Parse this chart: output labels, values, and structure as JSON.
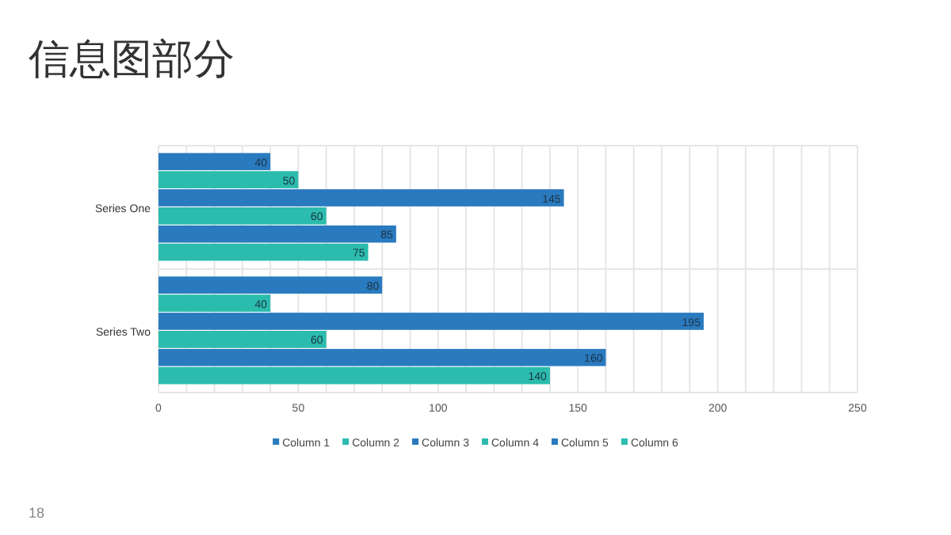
{
  "chart_data": {
    "type": "bar",
    "orientation": "horizontal",
    "title": "信息图部分",
    "categories": [
      "Series One",
      "Series Two"
    ],
    "series": [
      {
        "name": "Column 1",
        "color": "#2a7abf",
        "values": [
          40,
          80
        ]
      },
      {
        "name": "Column 2",
        "color": "#2bbcad",
        "values": [
          50,
          40
        ]
      },
      {
        "name": "Column 3",
        "color": "#2a7abf",
        "values": [
          145,
          195
        ]
      },
      {
        "name": "Column 4",
        "color": "#2bbcad",
        "values": [
          60,
          60
        ]
      },
      {
        "name": "Column 5",
        "color": "#2a7abf",
        "values": [
          85,
          160
        ]
      },
      {
        "name": "Column 6",
        "color": "#2bbcad",
        "values": [
          75,
          140
        ]
      }
    ],
    "xlim": [
      0,
      250
    ],
    "xticks": [
      0,
      {
        "value": 10,
        "label": null
      },
      {
        "value": 20,
        "label": null
      },
      {
        "value": 30,
        "label": null
      },
      {
        "value": 40,
        "label": null
      },
      50,
      {
        "value": 60,
        "label": null
      },
      {
        "value": 70,
        "label": null
      },
      {
        "value": 80,
        "label": null
      },
      {
        "value": 90,
        "label": null
      },
      100,
      {
        "value": 110,
        "label": null
      },
      {
        "value": 120,
        "label": null
      },
      {
        "value": 130,
        "label": null
      },
      {
        "value": 140,
        "label": null
      },
      150,
      {
        "value": 160,
        "label": null
      },
      {
        "value": 170,
        "label": null
      },
      {
        "value": 180,
        "label": null
      },
      {
        "value": 190,
        "label": null
      },
      200,
      {
        "value": 210,
        "label": null
      },
      {
        "value": 220,
        "label": null
      },
      {
        "value": 230,
        "label": null
      },
      {
        "value": 240,
        "label": null
      },
      250
    ],
    "grid": "x",
    "legend": "bottom",
    "data_labels": true,
    "annotations": [
      "18"
    ]
  }
}
